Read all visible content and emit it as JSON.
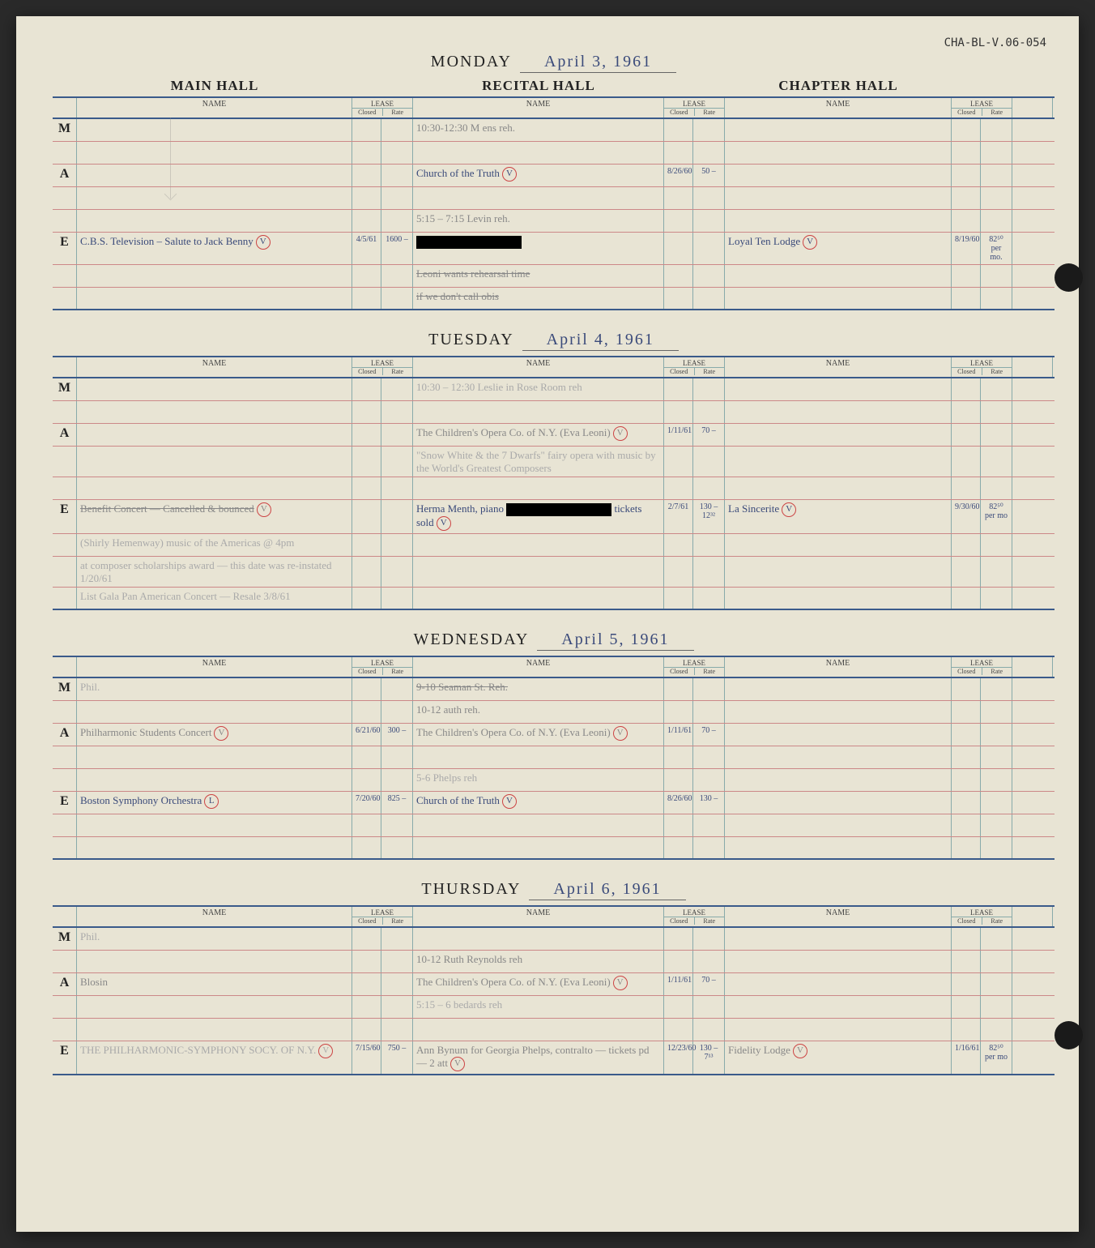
{
  "doc_id": "CHA-BL-V.06-054",
  "colors": {
    "page_bg": "#e8e4d4",
    "blue_line": "#8aa",
    "pink_line": "#c88",
    "ink_blue": "#3a4a7a",
    "pencil": "#888",
    "circle_red": "#c44"
  },
  "halls": {
    "main": "MAIN HALL",
    "recital": "RECITAL HALL",
    "chapter": "CHAPTER HALL"
  },
  "col_labels": {
    "name": "NAME",
    "lease": "LEASE",
    "closed": "Closed",
    "rate": "Rate"
  },
  "periods": {
    "m": "M",
    "a": "A",
    "e": "E"
  },
  "days": [
    {
      "weekday": "MONDAY",
      "date": "April 3, 1961",
      "rows": [
        {
          "period": "M",
          "main": {
            "name": ""
          },
          "recital": {
            "name": "10:30-12:30 M ens reh.",
            "cls": "pencil"
          },
          "chapter": {}
        },
        {
          "period": "",
          "main": {},
          "recital": {},
          "chapter": {}
        },
        {
          "period": "A",
          "main": {},
          "recital": {
            "name": "Church of the Truth",
            "circled": "V",
            "closed": "8/26/60",
            "rate": "50 –"
          },
          "chapter": {}
        },
        {
          "period": "",
          "main": {},
          "recital": {},
          "chapter": {}
        },
        {
          "period": "",
          "main": {},
          "recital": {
            "name": "5:15 – 7:15 Levin reh.",
            "cls": "pencil"
          },
          "chapter": {}
        },
        {
          "period": "E",
          "main": {
            "name": "C.B.S. Television – Salute to Jack Benny",
            "circled": "V",
            "closed": "4/5/61",
            "rate": "1600 –"
          },
          "recital": {
            "name": "[redacted]",
            "redact": true,
            "cls": "strike pencil"
          },
          "chapter": {
            "name": "Loyal Ten Lodge",
            "circled": "V",
            "closed": "8/19/60",
            "rate": "82⁵⁰ per mo."
          }
        },
        {
          "period": "",
          "main": {},
          "recital": {
            "name": "Leoni wants rehearsal time",
            "cls": "pencil strike multiline"
          },
          "chapter": {}
        },
        {
          "period": "",
          "main": {},
          "recital": {
            "name": "if we don't call obis",
            "cls": "pencil strike multiline"
          },
          "chapter": {}
        }
      ]
    },
    {
      "weekday": "TUESDAY",
      "date": "April 4, 1961",
      "rows": [
        {
          "period": "M",
          "main": {
            "name": "",
            "cls": "faded"
          },
          "recital": {
            "name": "10:30 – 12:30 Leslie in Rose Room reh",
            "cls": "faded multiline"
          },
          "chapter": {}
        },
        {
          "period": "",
          "main": {},
          "recital": {},
          "chapter": {}
        },
        {
          "period": "A",
          "main": {
            "name": "",
            "cls": "faded"
          },
          "recital": {
            "name": "The Children's Opera Co. of N.Y.  (Eva Leoni)",
            "circled": "V",
            "closed": "1/11/61",
            "rate": "70 –",
            "cls": "pencil"
          },
          "chapter": {}
        },
        {
          "period": "",
          "main": {},
          "recital": {
            "name": "\"Snow White & the 7 Dwarfs\" fairy opera with music by the World's Greatest Composers",
            "cls": "faded multiline"
          },
          "chapter": {}
        },
        {
          "period": "",
          "main": {},
          "recital": {},
          "chapter": {}
        },
        {
          "period": "E",
          "main": {
            "name": "Benefit Concert — Cancelled & bounced",
            "cls": "pencil strike",
            "circled": "V",
            "closed": "",
            "rate": ""
          },
          "recital": {
            "name": "Herma Menth, piano  [redacted]  tickets sold",
            "redact": true,
            "closed": "2/7/61",
            "rate": "130 –\n12³²",
            "circled": "V"
          },
          "chapter": {
            "name": "La Sincerite",
            "circled": "V",
            "closed": "9/30/60",
            "rate": "82⁵⁰ per mo"
          }
        },
        {
          "period": "",
          "main": {
            "name": "(Shirly Hemenway) music of the Americas @ 4pm",
            "cls": "faded multiline"
          },
          "recital": {},
          "chapter": {}
        },
        {
          "period": "",
          "main": {
            "name": "at composer scholarships award — this date was re-instated 1/20/61",
            "cls": "faded multiline"
          },
          "recital": {},
          "chapter": {}
        },
        {
          "period": "",
          "main": {
            "name": "List Gala Pan American Concert — Resale 3/8/61",
            "cls": "faded multiline"
          },
          "recital": {},
          "chapter": {}
        }
      ]
    },
    {
      "weekday": "WEDNESDAY",
      "date": "April 5, 1961",
      "rows": [
        {
          "period": "M",
          "main": {
            "name": "Phil.",
            "cls": "faded"
          },
          "recital": {
            "name": "9-10 Seaman St. Reh.",
            "cls": "pencil strike"
          },
          "chapter": {}
        },
        {
          "period": "",
          "main": {},
          "recital": {
            "name": "10-12 auth reh.",
            "cls": "pencil"
          },
          "chapter": {}
        },
        {
          "period": "A",
          "main": {
            "name": "Philharmonic Students Concert",
            "circled": "V",
            "closed": "6/21/60",
            "rate": "300 –",
            "cls": "pencil"
          },
          "recital": {
            "name": "The Children's Opera Co. of N.Y.  (Eva Leoni)",
            "circled": "V",
            "closed": "1/11/61",
            "rate": "70 –",
            "cls": "pencil"
          },
          "chapter": {}
        },
        {
          "period": "",
          "main": {},
          "recital": {},
          "chapter": {}
        },
        {
          "period": "",
          "main": {},
          "recital": {
            "name": "5-6 Phelps reh",
            "cls": "faded"
          },
          "chapter": {}
        },
        {
          "period": "E",
          "main": {
            "name": "Boston Symphony Orchestra",
            "circled": "L",
            "closed": "7/20/60",
            "rate": "825 –"
          },
          "recital": {
            "name": "Church of the Truth",
            "circled": "V",
            "closed": "8/26/60",
            "rate": "130 –"
          },
          "chapter": {}
        },
        {
          "period": "",
          "main": {},
          "recital": {},
          "chapter": {}
        },
        {
          "period": "",
          "main": {},
          "recital": {},
          "chapter": {}
        }
      ]
    },
    {
      "weekday": "THURSDAY",
      "date": "April 6, 1961",
      "rows": [
        {
          "period": "M",
          "main": {
            "name": "Phil.",
            "cls": "faded"
          },
          "recital": {},
          "chapter": {}
        },
        {
          "period": "",
          "main": {},
          "recital": {
            "name": "10-12 Ruth Reynolds reh",
            "cls": "pencil"
          },
          "chapter": {}
        },
        {
          "period": "A",
          "main": {
            "name": "Blosin",
            "cls": "pencil"
          },
          "recital": {
            "name": "The Children's Opera Co. of N.Y.  (Eva Leoni)",
            "circled": "V",
            "closed": "1/11/61",
            "rate": "70 –",
            "cls": "pencil"
          },
          "chapter": {}
        },
        {
          "period": "",
          "main": {},
          "recital": {
            "name": "5:15 – 6 bedards reh",
            "cls": "faded"
          },
          "chapter": {}
        },
        {
          "period": "",
          "main": {},
          "recital": {},
          "chapter": {}
        },
        {
          "period": "E",
          "main": {
            "name": "THE PHILHARMONIC-SYMPHONY SOCY. OF N.Y.",
            "cls": "faded",
            "circled": "V",
            "closed": "7/15/60",
            "rate": "750 –"
          },
          "recital": {
            "name": "Ann Bynum for Georgia Phelps, contralto — tickets pd — 2 att",
            "circled": "V",
            "closed": "12/23/60",
            "rate": "130 –\n7¹³",
            "cls": "pencil multiline"
          },
          "chapter": {
            "name": "Fidelity Lodge",
            "circled": "V",
            "closed": "1/16/61",
            "rate": "82⁵⁰ per mo",
            "cls": "pencil"
          }
        }
      ]
    }
  ]
}
